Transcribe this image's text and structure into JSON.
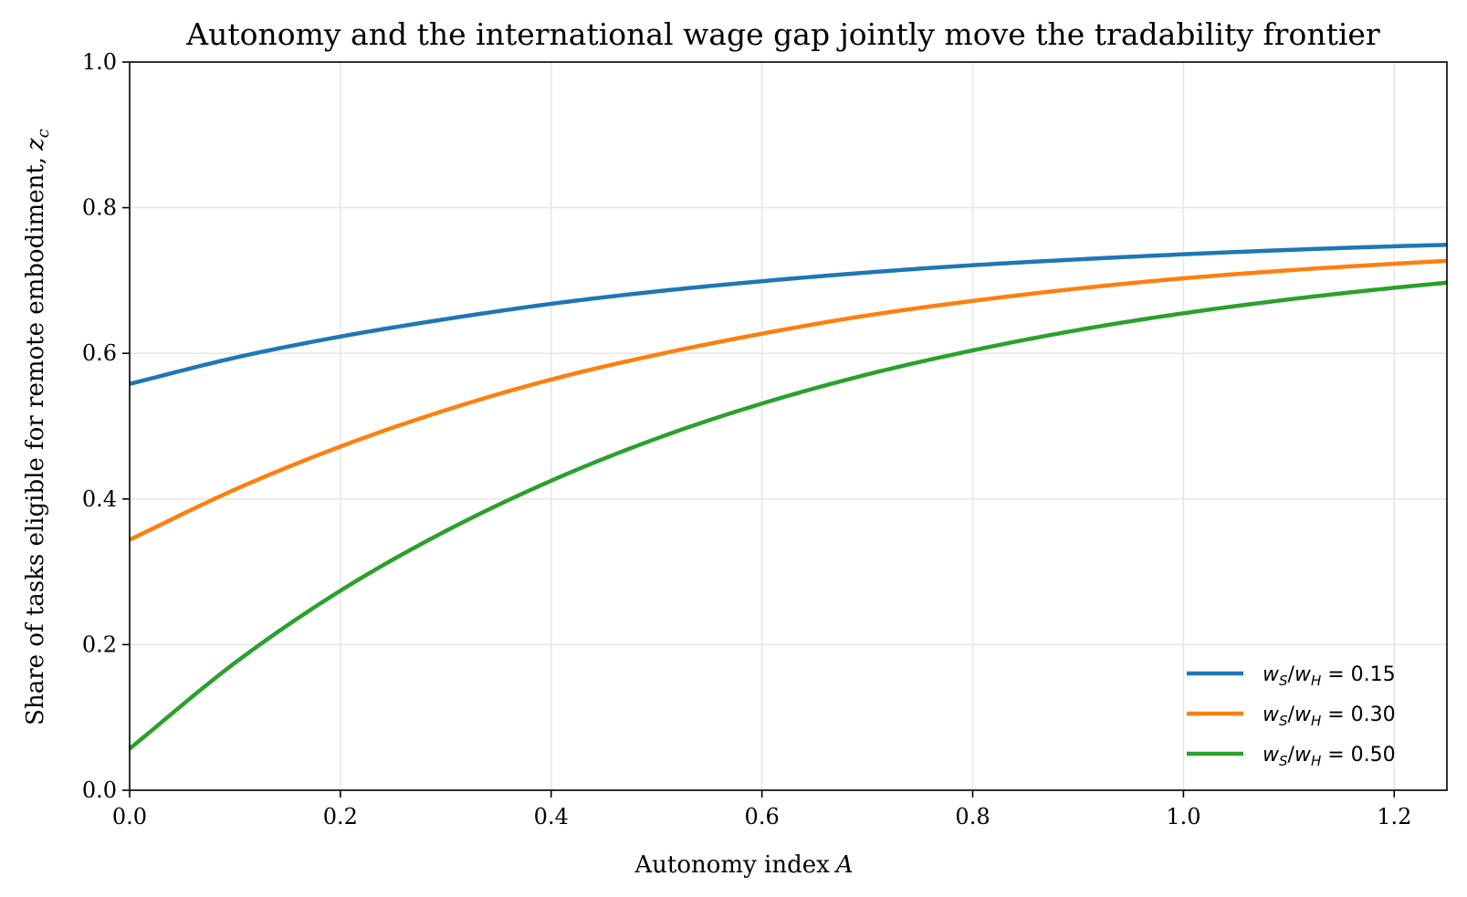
{
  "chart_data": {
    "type": "line",
    "title": "Autonomy and the international wage gap jointly move the tradability frontier",
    "xlabel": "Autonomy index",
    "xlabel_symbol": "A",
    "ylabel": "Share of tasks eligible for remote embodiment,",
    "ylabel_symbol": "z",
    "ylabel_subscript": "c",
    "xlim": [
      0,
      1.25
    ],
    "ylim": [
      0,
      1.0
    ],
    "xticks": [
      0.0,
      0.2,
      0.4,
      0.6,
      0.8,
      1.0,
      1.2
    ],
    "xtick_labels": [
      "0.0",
      "0.2",
      "0.4",
      "0.6",
      "0.8",
      "1.0",
      "1.2"
    ],
    "yticks": [
      0.0,
      0.2,
      0.4,
      0.6,
      0.8,
      1.0
    ],
    "ytick_labels": [
      "0.0",
      "0.2",
      "0.4",
      "0.6",
      "0.8",
      "1.0"
    ],
    "grid": true,
    "legend_position": "lower-right",
    "x": [
      0.0,
      0.1,
      0.2,
      0.3,
      0.4,
      0.5,
      0.6,
      0.7,
      0.8,
      0.9,
      1.0,
      1.1,
      1.2,
      1.25
    ],
    "series": [
      {
        "name": "w_S/w_H = 0.15",
        "legend_num": "w",
        "legend_sub1": "S",
        "legend_den": "w",
        "legend_sub2": "H",
        "legend_value": "0.15",
        "color": "#1f77b4",
        "values": [
          0.558,
          0.594,
          0.623,
          0.647,
          0.668,
          0.685,
          0.699,
          0.711,
          0.721,
          0.729,
          0.736,
          0.742,
          0.747,
          0.749
        ]
      },
      {
        "name": "w_S/w_H = 0.30",
        "legend_num": "w",
        "legend_sub1": "S",
        "legend_den": "w",
        "legend_sub2": "H",
        "legend_value": "0.30",
        "color": "#ff7f0e",
        "values": [
          0.344,
          0.413,
          0.472,
          0.522,
          0.564,
          0.598,
          0.627,
          0.652,
          0.672,
          0.689,
          0.703,
          0.714,
          0.723,
          0.727
        ]
      },
      {
        "name": "w_S/w_H = 0.50",
        "legend_num": "w",
        "legend_sub1": "S",
        "legend_den": "w",
        "legend_sub2": "H",
        "legend_value": "0.50",
        "color": "#2ca02c",
        "values": [
          0.057,
          0.175,
          0.274,
          0.356,
          0.425,
          0.483,
          0.531,
          0.571,
          0.604,
          0.632,
          0.655,
          0.674,
          0.69,
          0.697
        ]
      }
    ]
  }
}
